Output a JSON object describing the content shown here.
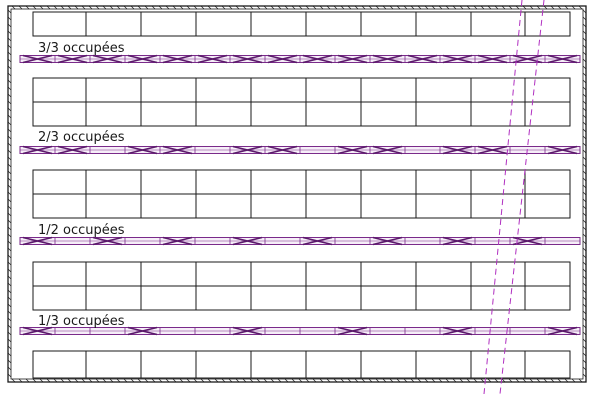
{
  "rows": [
    {
      "label": "3/3 occupées",
      "occupied": 3,
      "of": 3
    },
    {
      "label": "2/3 occupées",
      "occupied": 2,
      "of": 3
    },
    {
      "label": "1/2 occupées",
      "occupied": 1,
      "of": 2
    },
    {
      "label": "1/3 occupées",
      "occupied": 1,
      "of": 3
    }
  ],
  "colors": {
    "line": "#1a1a1a",
    "band": "#7a2a8a",
    "band_mark": "#5a1a6a",
    "cut": "#b030c0"
  }
}
